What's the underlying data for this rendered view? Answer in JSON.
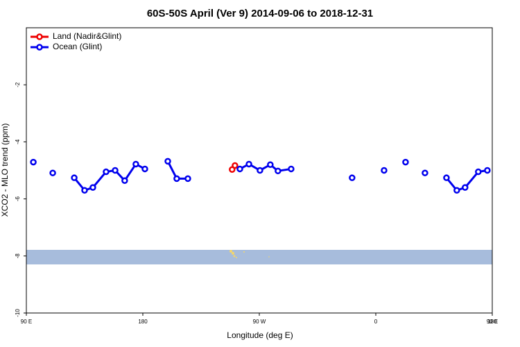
{
  "chart_data": {
    "type": "line",
    "title": "60S-50S April (Ver 9)   2014-09-06 to 2018-12-31",
    "x_label": "Longitude (deg E)",
    "y_label": "XCO2 - MLO trend (ppm)",
    "xlim": [
      90,
      450
    ],
    "ylim": [
      -10,
      0
    ],
    "xticks": [
      {
        "value": 90,
        "label": "90 E"
      },
      180,
      {
        "value": 270,
        "label": "90 W"
      },
      {
        "value": 360,
        "label": "0"
      },
      {
        "value": 450,
        "label": "90 E"
      },
      {
        "value": 540,
        "label": "180"
      }
    ],
    "yticks": [
      -10,
      -8,
      -6,
      -4,
      -2
    ],
    "legend": "top-left",
    "series": [
      {
        "name": "Land (Nadir&Glint)",
        "color": "#ee0000",
        "x": [
          249,
          251.2
        ],
        "values": [
          -4.97,
          -4.83
        ]
      },
      {
        "name": "Ocean (Glint)",
        "color": "#0000ee",
        "x": [
          95.4,
          null,
          110.4,
          null,
          127,
          135,
          141.4,
          151.6,
          158.6,
          166,
          174.6,
          181.6,
          null,
          199.3,
          206.2,
          214.8,
          null,
          255,
          262,
          270.5,
          278.5,
          284.4,
          294.6,
          null,
          341.7,
          null,
          366.4,
          null,
          383,
          null,
          398,
          null,
          414.6,
          422.6,
          429,
          439.2,
          446.2
        ],
        "values": [
          -4.71,
          null,
          -5.09,
          null,
          -5.26,
          -5.7,
          -5.6,
          -5.05,
          -5.0,
          -5.36,
          -4.78,
          -4.95,
          null,
          -4.68,
          -5.29,
          -5.29,
          null,
          -4.95,
          -4.78,
          -5.0,
          -4.8,
          -5.02,
          -4.95,
          null,
          -5.26,
          null,
          -5.0,
          null,
          -4.71,
          null,
          -5.09,
          null,
          -5.26,
          -5.7,
          -5.6,
          -5.05,
          -5.0
        ]
      }
    ]
  }
}
